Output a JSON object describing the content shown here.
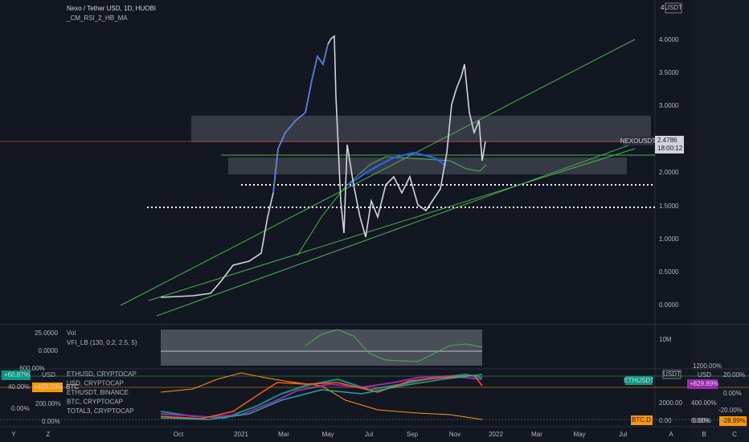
{
  "header": {
    "symbol": "Nexo / Tether USD, 1D, HUOBI",
    "indicator": "_CM_RSI_2_HB_MA"
  },
  "price_axis": {
    "scale_mode": "4",
    "currency": "USDT",
    "labels": [
      "4.0000",
      "3.5000",
      "3.0000",
      "2.0000",
      "1.5000",
      "1.0000",
      "0.5000",
      "0.0000"
    ],
    "tag": {
      "symbol": "NEXOUSDT",
      "price": "2.4786",
      "countdown": "18:00:12"
    }
  },
  "volume_pane": {
    "title": "Vol",
    "indicator": "VFI_LB (130, 0.2, 2.5, 5)",
    "left_labels": [
      "25.0000",
      "0.0000"
    ],
    "right_label": "10M",
    "right_top": "1200.00%"
  },
  "compare_pane": {
    "left_labels": [
      "600.00%",
      "40.00%",
      "200.00%",
      "0.00%",
      "0.00%"
    ],
    "left_tags": [
      "+60.87%",
      "+403.03%"
    ],
    "left_units": [
      "USD",
      "BTC"
    ],
    "legend": [
      "ETHUSD, CRYPTOCAP",
      "USD, CRYPTOCAP",
      "ETHUSDT, BINANCE",
      "BTC, CRYPTOCAP",
      "TOTAL3, CRYPTOCAP"
    ],
    "right_unit": "USDT",
    "right_tag": "ETHUSDT",
    "right_labels": [
      "2000.00",
      "0.00"
    ],
    "side_unit": "USD",
    "side_tag": "+829.89%",
    "side_labels": [
      "400.00%",
      "0.00%"
    ],
    "far_labels": [
      "20.00%",
      "0.00%",
      "-20.00%",
      "0.00%"
    ],
    "far_tag": "-28.99%",
    "dominance_tag": "BTC.D"
  },
  "time_axis": [
    "Oct",
    "2021",
    "Mar",
    "May",
    "Jul",
    "Sep",
    "Nov",
    "2022",
    "Mar",
    "May",
    "Jul"
  ],
  "corner_icons": {
    "left": [
      "Y",
      "Z"
    ],
    "right": [
      "A",
      "B",
      "C"
    ]
  }
}
